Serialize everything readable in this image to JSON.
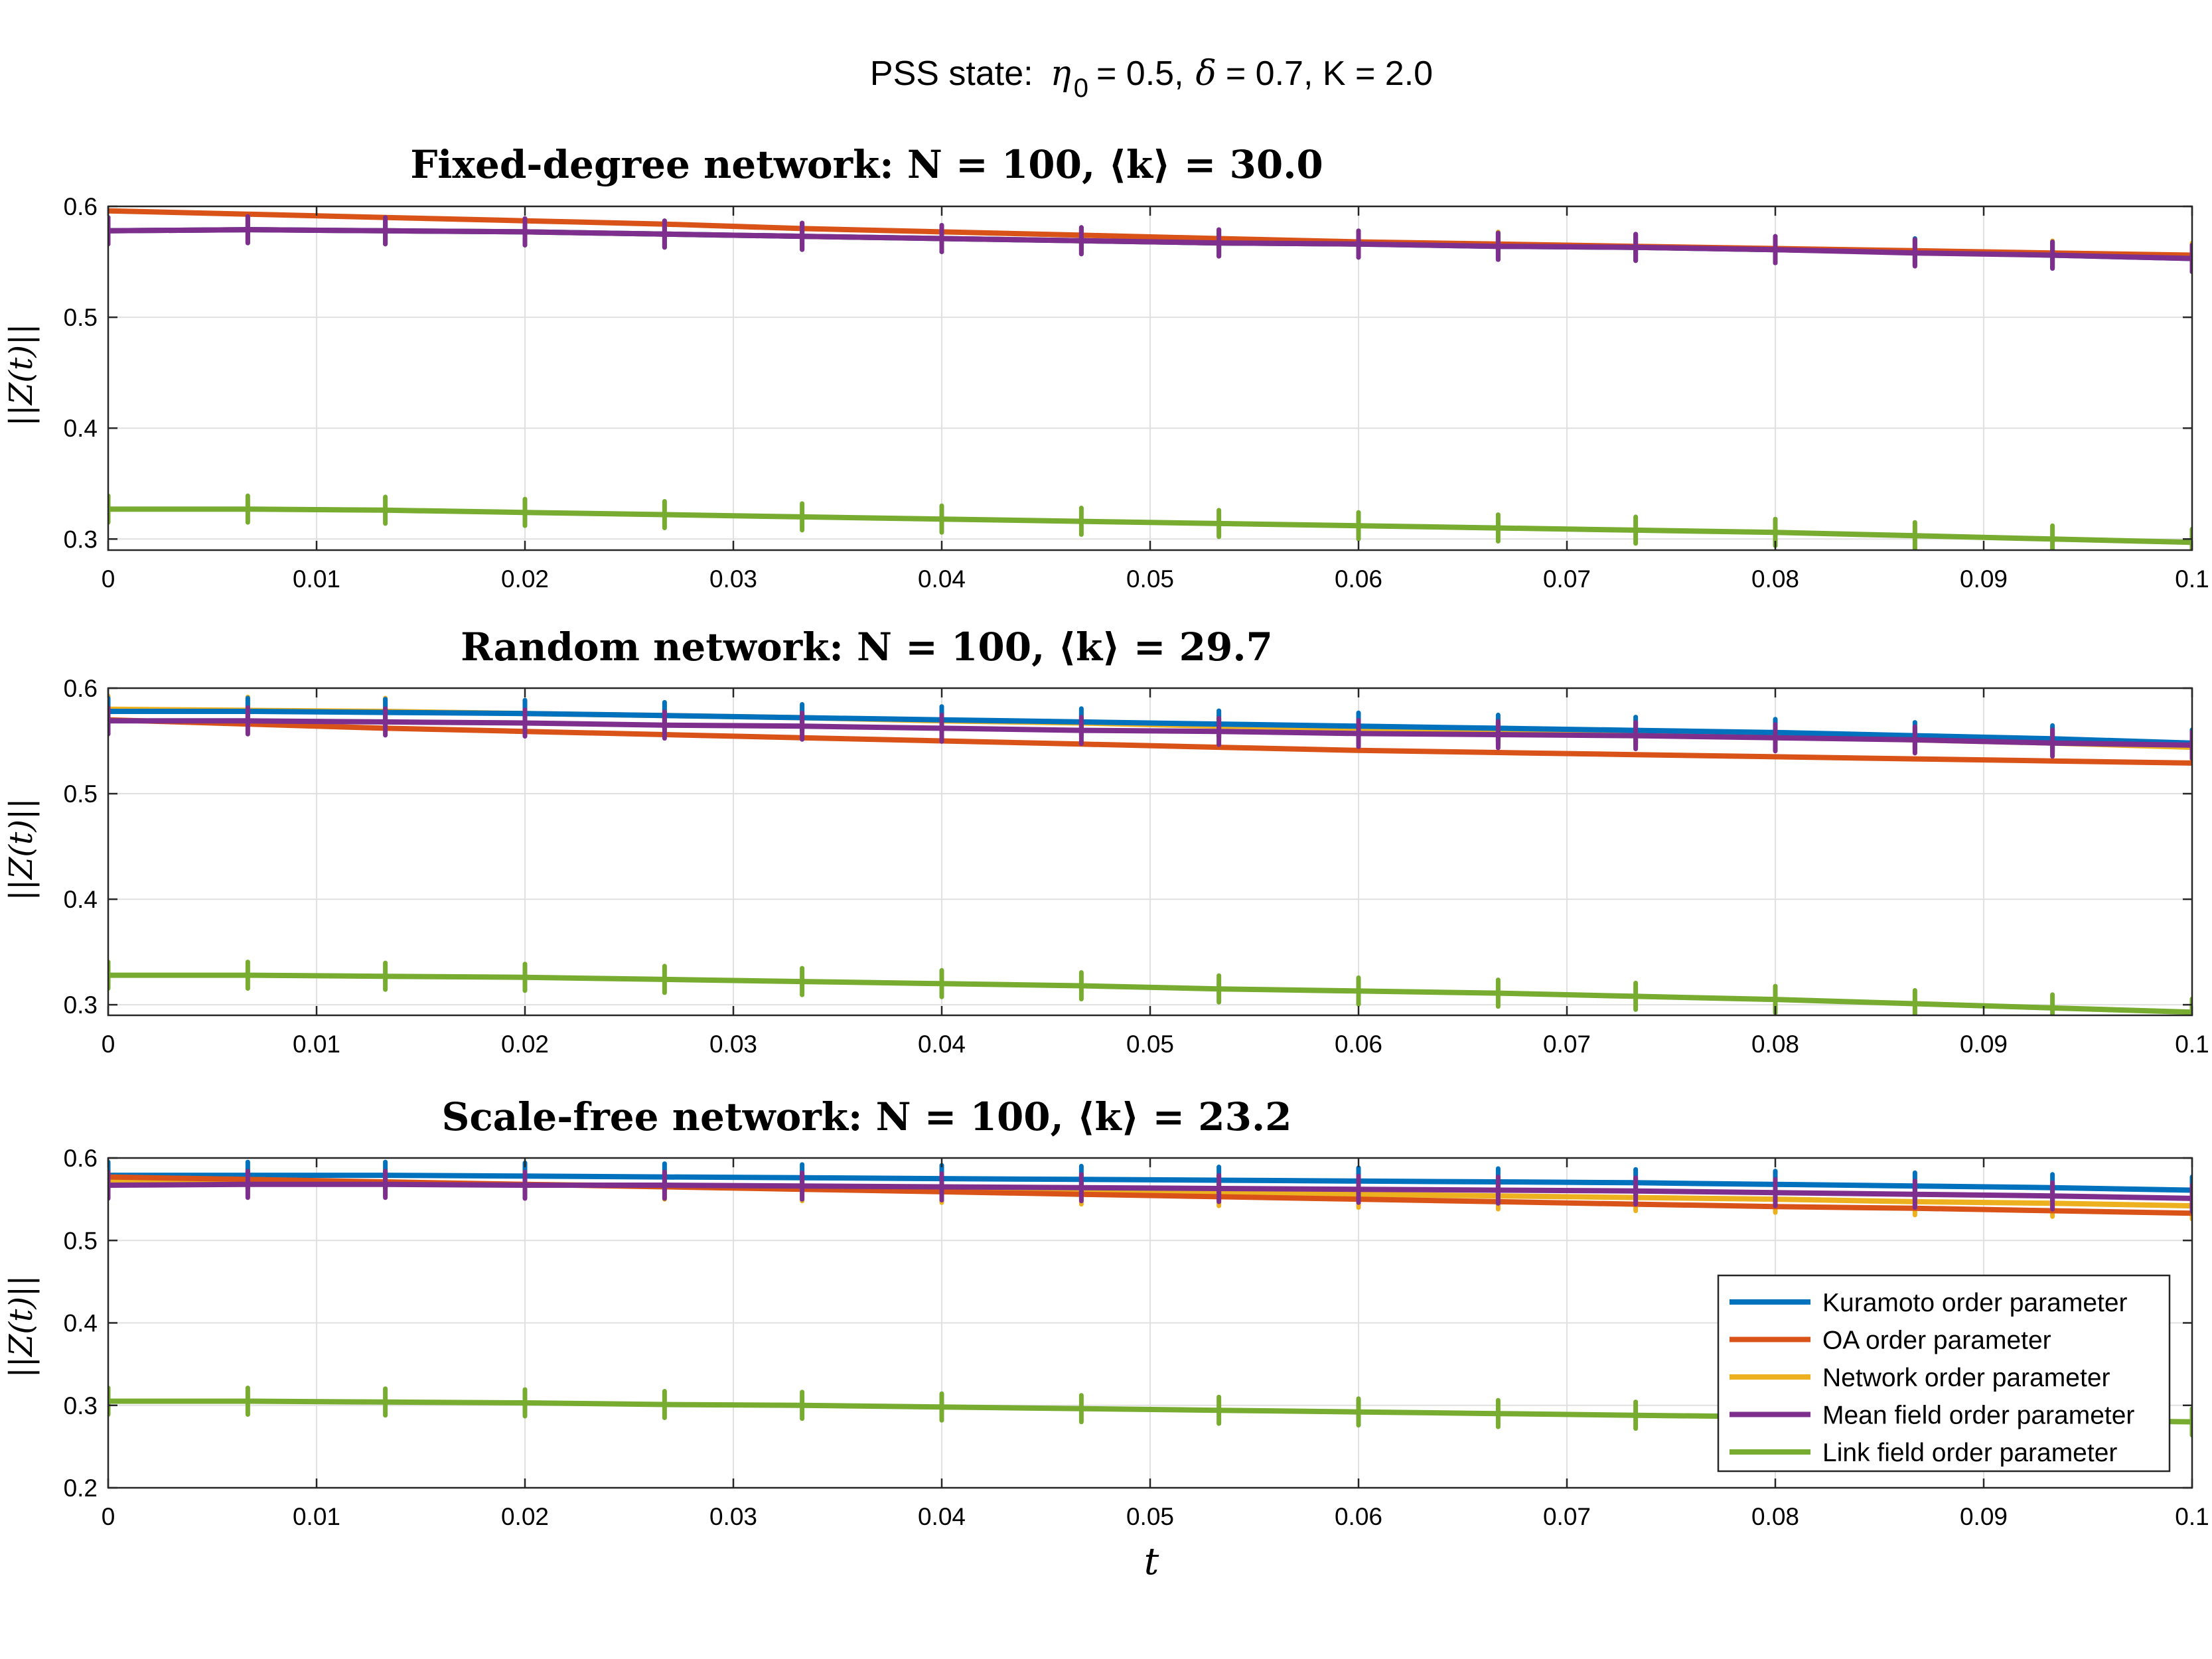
{
  "figure": {
    "suptitle_prefix": "PSS state:",
    "eta_symbol": "η",
    "eta_sub": "0",
    "eta_value": "= 0.5,",
    "delta_symbol": "δ",
    "delta_value": "= 0.7, K = 2.0",
    "x_label": "t",
    "y_label": "||Z(t)||"
  },
  "colors": {
    "Kuramoto order parameter": "#0072BD",
    "OA order parameter": "#D95319",
    "Network order parameter": "#EDB120",
    "Mean field order parameter": "#7E2F8E",
    "Link field order parameter": "#77AC30"
  },
  "legend": {
    "placement": "lower-right (bottom panel)",
    "entries": [
      "Kuramoto order parameter",
      "OA order parameter",
      "Network order parameter",
      "Mean field order parameter",
      "Link field order parameter"
    ]
  },
  "chart_data": [
    {
      "type": "line",
      "title": "Fixed-degree network: N = 100, ⟨k⟩ = 30.0",
      "xlabel": "",
      "ylabel": "||Z(t)||",
      "xlim": [
        0,
        0.1
      ],
      "ylim": [
        0.29,
        0.6
      ],
      "xticks": [
        0,
        0.01,
        0.02,
        0.03,
        0.04,
        0.05,
        0.06,
        0.07,
        0.08,
        0.09,
        0.1
      ],
      "xtick_labels": [
        "0",
        "0.01",
        "0.02",
        "0.03",
        "0.04",
        "0.05",
        "0.06",
        "0.07",
        "0.08",
        "0.09",
        "0.1"
      ],
      "yticks": [
        0.3,
        0.4,
        0.5,
        0.6
      ],
      "ytick_labels": [
        "0.3",
        "0.4",
        "0.5",
        "0.6"
      ],
      "grid": true,
      "x": [
        0,
        0.0067,
        0.0133,
        0.02,
        0.0267,
        0.0333,
        0.04,
        0.0467,
        0.0533,
        0.06,
        0.0667,
        0.0733,
        0.08,
        0.0867,
        0.0933,
        0.1
      ],
      "series": [
        {
          "name": "Kuramoto order parameter",
          "values": [
            0.578,
            0.579,
            0.578,
            0.577,
            0.575,
            0.573,
            0.571,
            0.569,
            0.567,
            0.566,
            0.564,
            0.563,
            0.561,
            0.559,
            0.556,
            0.553
          ]
        },
        {
          "name": "OA order parameter",
          "values": [
            0.596,
            0.593,
            0.59,
            0.587,
            0.584,
            0.58,
            0.577,
            0.574,
            0.571,
            0.568,
            0.566,
            0.564,
            0.562,
            0.56,
            0.558,
            0.556
          ]
        },
        {
          "name": "Network order parameter",
          "values": [
            0.578,
            0.579,
            0.578,
            0.577,
            0.575,
            0.573,
            0.571,
            0.569,
            0.567,
            0.566,
            0.565,
            0.563,
            0.561,
            0.559,
            0.557,
            0.555
          ]
        },
        {
          "name": "Mean field order parameter",
          "values": [
            0.578,
            0.579,
            0.578,
            0.577,
            0.575,
            0.573,
            0.571,
            0.569,
            0.567,
            0.566,
            0.564,
            0.563,
            0.561,
            0.558,
            0.556,
            0.553
          ]
        },
        {
          "name": "Link field order parameter",
          "values": [
            0.327,
            0.327,
            0.326,
            0.324,
            0.322,
            0.32,
            0.318,
            0.316,
            0.314,
            0.312,
            0.31,
            0.308,
            0.306,
            0.303,
            0.3,
            0.297
          ]
        }
      ]
    },
    {
      "type": "line",
      "title": "Random network: N = 100, ⟨k⟩ = 29.7",
      "xlabel": "",
      "ylabel": "||Z(t)||",
      "xlim": [
        0,
        0.1
      ],
      "ylim": [
        0.29,
        0.6
      ],
      "xticks": [
        0,
        0.01,
        0.02,
        0.03,
        0.04,
        0.05,
        0.06,
        0.07,
        0.08,
        0.09,
        0.1
      ],
      "xtick_labels": [
        "0",
        "0.01",
        "0.02",
        "0.03",
        "0.04",
        "0.05",
        "0.06",
        "0.07",
        "0.08",
        "0.09",
        "0.1"
      ],
      "yticks": [
        0.3,
        0.4,
        0.5,
        0.6
      ],
      "ytick_labels": [
        "0.3",
        "0.4",
        "0.5",
        "0.6"
      ],
      "grid": true,
      "x": [
        0,
        0.0067,
        0.0133,
        0.02,
        0.0267,
        0.0333,
        0.04,
        0.0467,
        0.0533,
        0.06,
        0.0667,
        0.0733,
        0.08,
        0.0867,
        0.0933,
        0.1
      ],
      "series": [
        {
          "name": "Kuramoto order parameter",
          "values": [
            0.578,
            0.578,
            0.577,
            0.576,
            0.574,
            0.572,
            0.57,
            0.568,
            0.566,
            0.564,
            0.562,
            0.56,
            0.558,
            0.555,
            0.552,
            0.548
          ]
        },
        {
          "name": "OA order parameter",
          "values": [
            0.57,
            0.566,
            0.562,
            0.559,
            0.556,
            0.553,
            0.55,
            0.547,
            0.544,
            0.541,
            0.539,
            0.537,
            0.535,
            0.533,
            0.531,
            0.529
          ]
        },
        {
          "name": "Network order parameter",
          "values": [
            0.58,
            0.579,
            0.578,
            0.576,
            0.574,
            0.572,
            0.569,
            0.567,
            0.564,
            0.562,
            0.559,
            0.556,
            0.554,
            0.551,
            0.548,
            0.544
          ]
        },
        {
          "name": "Mean field order parameter",
          "values": [
            0.569,
            0.569,
            0.568,
            0.567,
            0.565,
            0.564,
            0.562,
            0.56,
            0.559,
            0.557,
            0.556,
            0.555,
            0.553,
            0.551,
            0.548,
            0.546
          ]
        },
        {
          "name": "Link field order parameter",
          "values": [
            0.328,
            0.328,
            0.327,
            0.326,
            0.324,
            0.322,
            0.32,
            0.318,
            0.315,
            0.313,
            0.311,
            0.308,
            0.305,
            0.301,
            0.297,
            0.293
          ]
        }
      ]
    },
    {
      "type": "line",
      "title": "Scale-free network: N = 100, ⟨k⟩ = 23.2",
      "xlabel": "t",
      "ylabel": "||Z(t)||",
      "xlim": [
        0,
        0.1
      ],
      "ylim": [
        0.2,
        0.6
      ],
      "xticks": [
        0,
        0.01,
        0.02,
        0.03,
        0.04,
        0.05,
        0.06,
        0.07,
        0.08,
        0.09,
        0.1
      ],
      "xtick_labels": [
        "0",
        "0.01",
        "0.02",
        "0.03",
        "0.04",
        "0.05",
        "0.06",
        "0.07",
        "0.08",
        "0.09",
        "0.1"
      ],
      "yticks": [
        0.2,
        0.3,
        0.4,
        0.5,
        0.6
      ],
      "ytick_labels": [
        "0.2",
        "0.3",
        "0.4",
        "0.5",
        "0.6"
      ],
      "grid": true,
      "legend": "lower-right",
      "x": [
        0,
        0.0067,
        0.0133,
        0.02,
        0.0267,
        0.0333,
        0.04,
        0.0467,
        0.0533,
        0.06,
        0.0667,
        0.0733,
        0.08,
        0.0867,
        0.0933,
        0.1
      ],
      "series": [
        {
          "name": "Kuramoto order parameter",
          "values": [
            0.579,
            0.579,
            0.579,
            0.578,
            0.577,
            0.576,
            0.575,
            0.574,
            0.573,
            0.572,
            0.571,
            0.57,
            0.568,
            0.566,
            0.564,
            0.561
          ]
        },
        {
          "name": "OA order parameter",
          "values": [
            0.577,
            0.574,
            0.571,
            0.568,
            0.565,
            0.562,
            0.559,
            0.556,
            0.553,
            0.55,
            0.547,
            0.544,
            0.541,
            0.539,
            0.536,
            0.533
          ]
        },
        {
          "name": "Network order parameter",
          "values": [
            0.572,
            0.571,
            0.57,
            0.568,
            0.566,
            0.564,
            0.562,
            0.56,
            0.558,
            0.556,
            0.554,
            0.552,
            0.55,
            0.547,
            0.545,
            0.542
          ]
        },
        {
          "name": "Mean field order parameter",
          "values": [
            0.567,
            0.568,
            0.568,
            0.567,
            0.567,
            0.566,
            0.565,
            0.564,
            0.563,
            0.562,
            0.561,
            0.56,
            0.558,
            0.556,
            0.554,
            0.551
          ]
        },
        {
          "name": "Link field order parameter",
          "values": [
            0.305,
            0.305,
            0.304,
            0.303,
            0.301,
            0.3,
            0.298,
            0.296,
            0.294,
            0.292,
            0.29,
            0.288,
            0.286,
            0.284,
            0.282,
            0.28
          ]
        }
      ]
    }
  ]
}
